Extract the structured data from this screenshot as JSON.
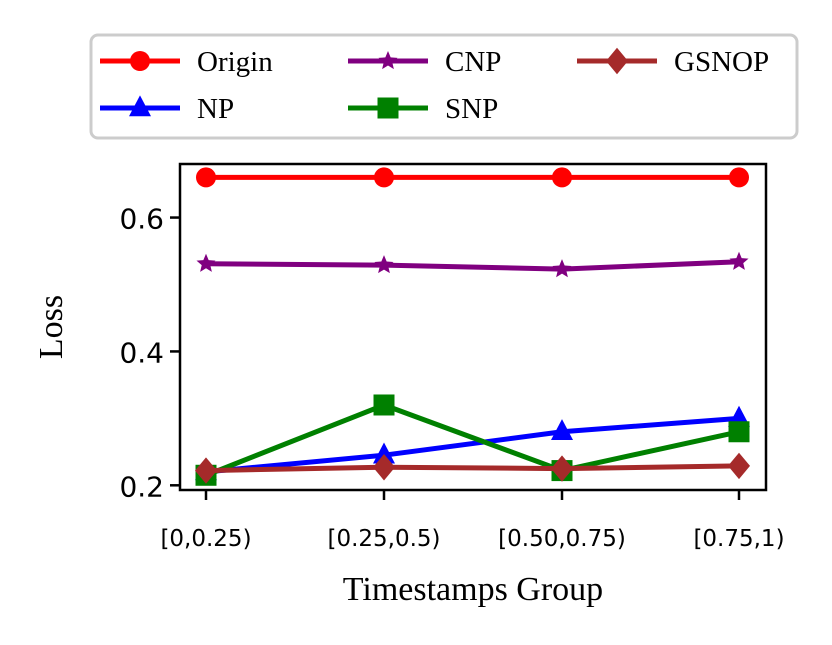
{
  "chart_data": {
    "type": "line",
    "title": "",
    "xlabel": "Timestamps Group",
    "ylabel": "Loss",
    "categories": [
      "[0,0.25)",
      "[0.25,0.5)",
      "[0.50,0.75)",
      "[0.75,1)"
    ],
    "ylim": [
      0.193,
      0.68
    ],
    "yticks": [
      {
        "value": 0.2,
        "label": "0.2"
      },
      {
        "value": 0.4,
        "label": "0.4"
      },
      {
        "value": 0.6,
        "label": "0.6"
      }
    ],
    "grid": false,
    "legend_position": "top",
    "series": [
      {
        "name": "Origin",
        "color": "#ff0000",
        "marker": "circle",
        "values": [
          0.66,
          0.66,
          0.66,
          0.66
        ]
      },
      {
        "name": "NP",
        "color": "#0000ff",
        "marker": "triangle",
        "values": [
          0.22,
          0.245,
          0.28,
          0.3
        ]
      },
      {
        "name": "CNP",
        "color": "#800080",
        "marker": "star",
        "values": [
          0.531,
          0.529,
          0.523,
          0.534
        ]
      },
      {
        "name": "SNP",
        "color": "#008000",
        "marker": "square",
        "values": [
          0.215,
          0.32,
          0.222,
          0.28
        ]
      },
      {
        "name": "GSNOP",
        "color": "#a52a2a",
        "marker": "diamond",
        "values": [
          0.222,
          0.227,
          0.225,
          0.229
        ]
      }
    ]
  }
}
